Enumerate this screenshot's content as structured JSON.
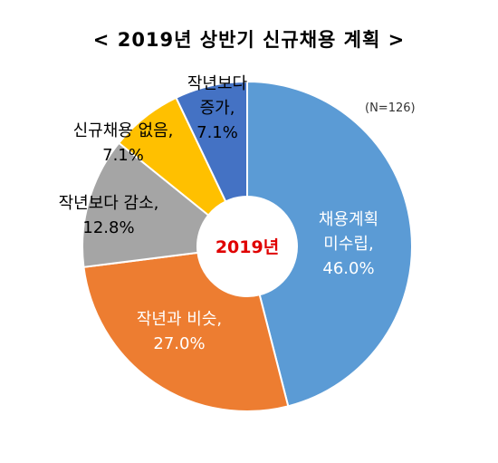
{
  "chart_data": {
    "type": "pie",
    "title": "< 2019년 상반기 신규채용 계획 >",
    "center_label": "2019년",
    "note": "(N=126)",
    "slices": [
      {
        "line1": "채용계획",
        "line2": "미수립,",
        "value_text": "46.0%",
        "value": 46.0,
        "color": "#5b9bd5"
      },
      {
        "line1": "작년과 비슷,",
        "line2": "",
        "value_text": "27.0%",
        "value": 27.0,
        "color": "#ed7d31"
      },
      {
        "line1": "작년보다 감소,",
        "line2": "",
        "value_text": "12.8%",
        "value": 12.8,
        "color": "#a5a5a5"
      },
      {
        "line1": "신규채용 없음,",
        "line2": "",
        "value_text": "7.1%",
        "value": 7.1,
        "color": "#ffc000"
      },
      {
        "line1": "작년보다",
        "line2": "증가,",
        "value_text": "7.1%",
        "value": 7.1,
        "color": "#4472c4"
      }
    ]
  }
}
